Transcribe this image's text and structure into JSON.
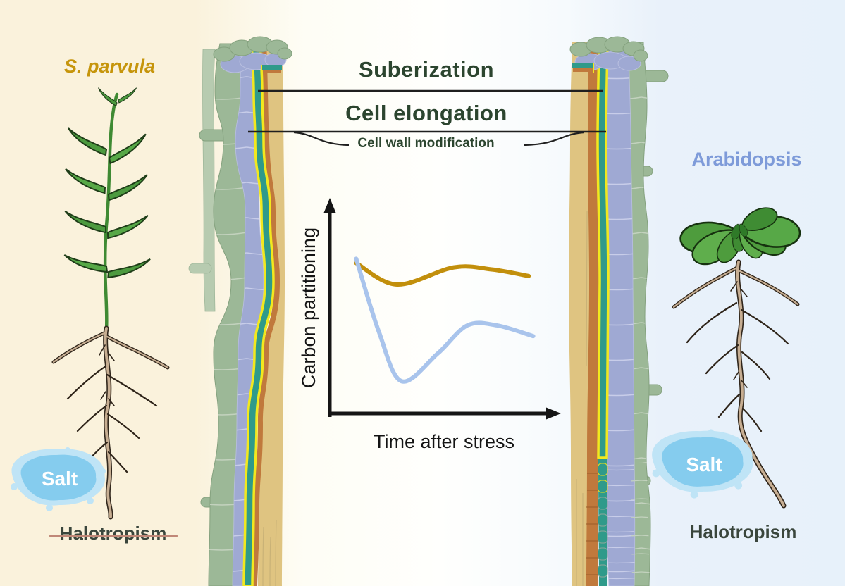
{
  "left_panel": {
    "species_label": "S. parvula",
    "salt_label": "Salt",
    "halotropism_label": "Halotropism",
    "halotropism_crossed_out": true
  },
  "right_panel": {
    "species_label": "Arabidopsis",
    "salt_label": "Salt",
    "halotropism_label": "Halotropism",
    "halotropism_crossed_out": false
  },
  "center_annotations": {
    "suberization_label": "Suberization",
    "cell_elongation_label": "Cell elongation",
    "cell_wall_modification_label": "Cell wall modification"
  },
  "colors": {
    "s_parvula_accent": "#C6950B",
    "arabidopsis_accent": "#7E9BD9",
    "annotation_green": "#2C452F",
    "halotropism_text": "#3A463C",
    "strikethrough": "#C08878",
    "salt_blob": "#85CCEE",
    "salt_text": "#FFFFFF"
  },
  "chart_data": {
    "type": "line",
    "title": "",
    "xlabel": "Time after stress",
    "ylabel": "Carbon partitioning",
    "x_axis": {
      "range": [
        0,
        1
      ],
      "ticks": "none",
      "arrow": true
    },
    "y_axis": {
      "range": [
        0,
        1
      ],
      "ticks": "none",
      "arrow": true
    },
    "grid": false,
    "legend_position": "none",
    "series": [
      {
        "name": "S. parvula",
        "color": "#C28F0C",
        "x": [
          0.11,
          0.29,
          0.54,
          0.71,
          0.87
        ],
        "y": [
          0.7,
          0.6,
          0.68,
          0.67,
          0.64
        ]
      },
      {
        "name": "Arabidopsis",
        "color": "#A9C4EC",
        "x": [
          0.11,
          0.21,
          0.31,
          0.47,
          0.6,
          0.73,
          0.89
        ],
        "y": [
          0.72,
          0.38,
          0.15,
          0.28,
          0.41,
          0.41,
          0.36
        ]
      }
    ]
  }
}
